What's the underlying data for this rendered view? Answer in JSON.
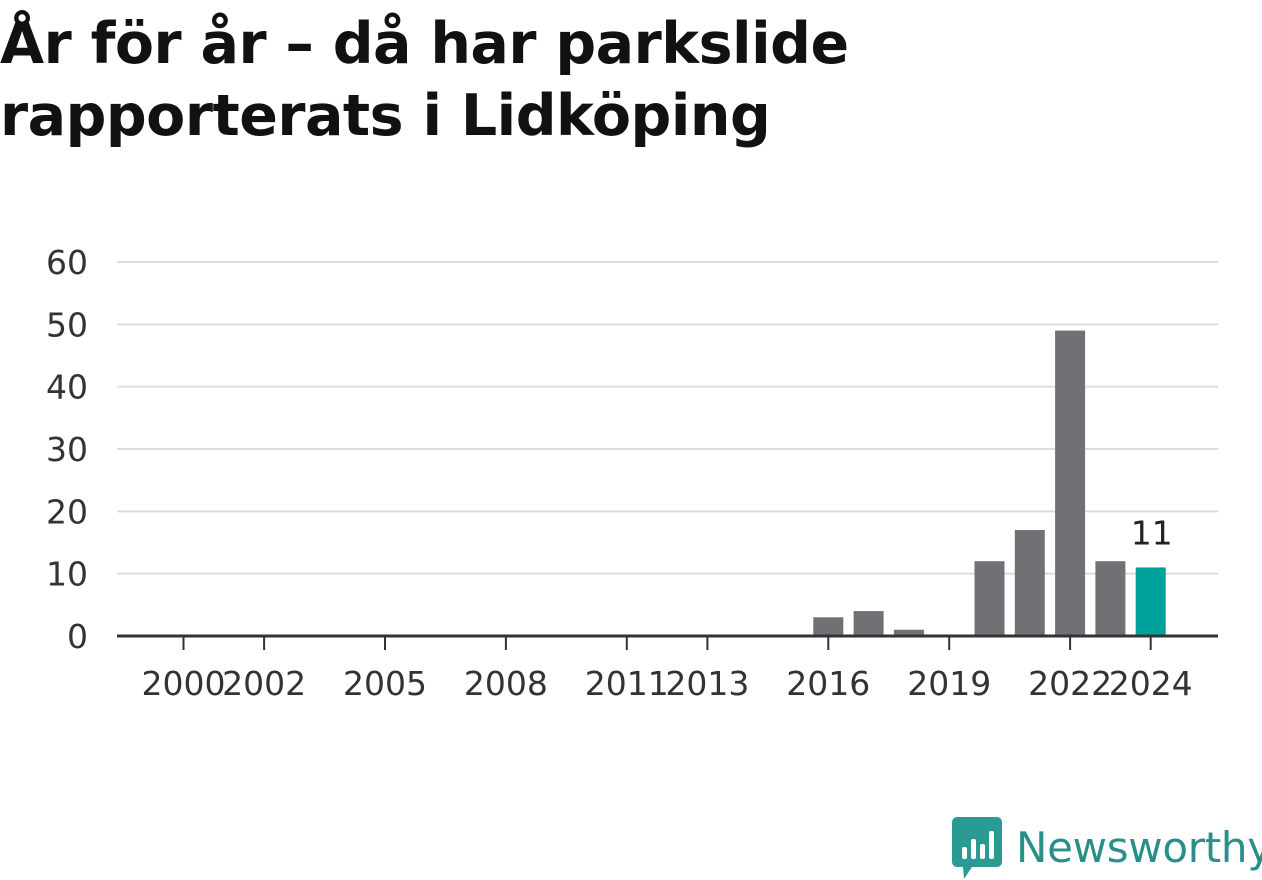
{
  "title": "År för år – då har parkslide rapporterats i Lidköping",
  "brand": {
    "name": "Newsworthy",
    "color": "#2b9a93"
  },
  "colors": {
    "bar": "#717075",
    "highlight": "#00a19a",
    "grid": "#dcdcdc",
    "axis": "#333333"
  },
  "chart_data": {
    "type": "bar",
    "categories": [
      "2000",
      "2001",
      "2002",
      "2003",
      "2004",
      "2005",
      "2006",
      "2007",
      "2008",
      "2009",
      "2010",
      "2011",
      "2012",
      "2013",
      "2014",
      "2015",
      "2016",
      "2017",
      "2018",
      "2019",
      "2020",
      "2021",
      "2022",
      "2023",
      "2024"
    ],
    "values": [
      0,
      0,
      0,
      0,
      0,
      0,
      0,
      0,
      0,
      0,
      0,
      0,
      0,
      0,
      0,
      0,
      3,
      4,
      1,
      0,
      12,
      17,
      49,
      12,
      11
    ],
    "x_tick_labels": [
      "2000",
      "2002",
      "2005",
      "2008",
      "2011",
      "2013",
      "2016",
      "2019",
      "2022",
      "2024"
    ],
    "y_ticks": [
      0,
      10,
      20,
      30,
      40,
      50,
      60
    ],
    "ylim": [
      0,
      60
    ],
    "highlight_category": "2024",
    "data_labels": [
      {
        "category": "2024",
        "text": "11"
      }
    ],
    "grid": true,
    "title": "År för år – då har parkslide rapporterats i Lidköping",
    "xlabel": "",
    "ylabel": ""
  }
}
